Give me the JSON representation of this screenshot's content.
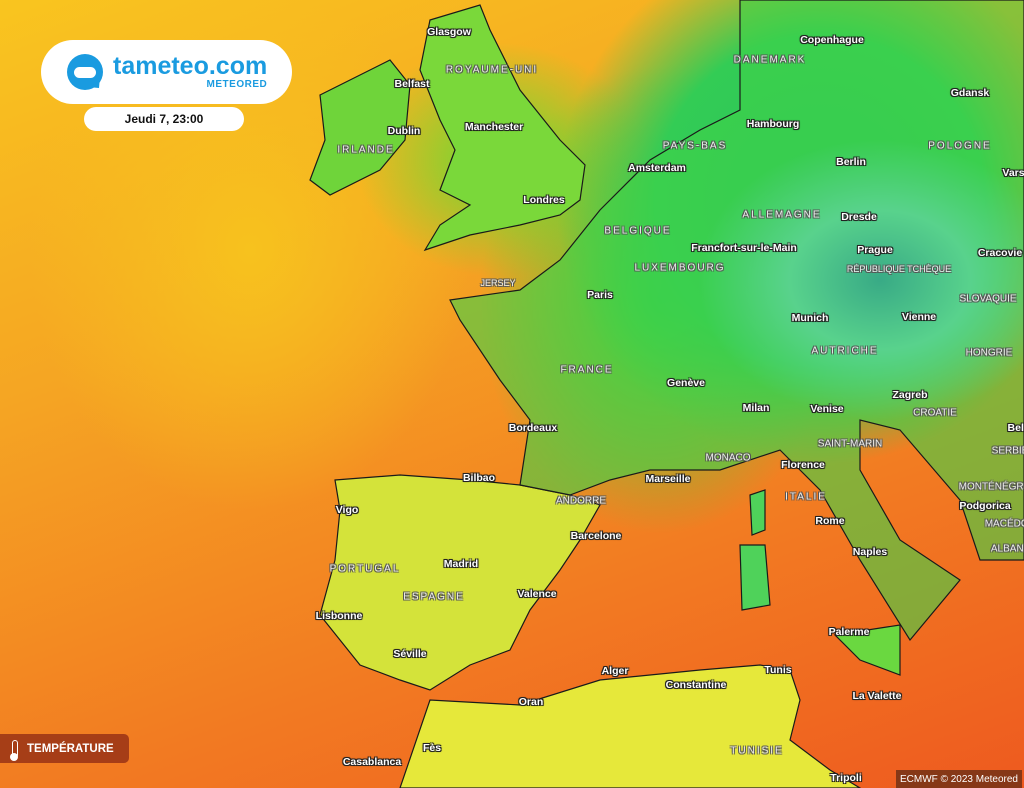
{
  "brand": {
    "name": "tameteo.com",
    "sub": "METEORED"
  },
  "date": "Jeudi 7, 23:00",
  "layer": {
    "label": "TEMPÉRATURE",
    "icon": "thermometer-icon"
  },
  "credit": "ECMWF © 2023 Meteored",
  "colors": {
    "brand": "#1a9be0",
    "warm": "#f27a22",
    "mild": "#f9c51f",
    "cool": "#33cc55",
    "cold": "#2f6fe0"
  },
  "cities": [
    "Glasgow",
    "Belfast",
    "Manchester",
    "Dublin",
    "Londres",
    "Amsterdam",
    "Hambourg",
    "Copenhague",
    "Gdansk",
    "Berlin",
    "Varsovie",
    "Dresde",
    "Prague",
    "Cracovie",
    "Francfort-sur-le-Main",
    "Paris",
    "Munich",
    "Vienne",
    "Genève",
    "Milan",
    "Venise",
    "Zagreb",
    "Belgrade",
    "Bordeaux",
    "Bilbao",
    "Marseille",
    "Florence",
    "Vigo",
    "Podgorica",
    "Barcelone",
    "Rome",
    "Madrid",
    "Naples",
    "Valence",
    "Lisbonne",
    "Palerme",
    "Séville",
    "Tunis",
    "Alger",
    "Constantine",
    "La Valette",
    "Oran",
    "Fès",
    "Casablanca",
    "Tripoli"
  ],
  "countries": [
    "DANEMARK",
    "ROYAUME-UNI",
    "IRLANDE",
    "PAYS-BAS",
    "BELGIQUE",
    "ALLEMAGNE",
    "POLOGNE",
    "LUXEMBOURG",
    "RÉPUBLIQUE TCHÈQUE",
    "JERSEY",
    "SLOVAQUIE",
    "FRANCE",
    "AUTRICHE",
    "HONGRIE",
    "CROATIE",
    "SERBIE",
    "MONACO",
    "SAINT-MARIN",
    "ANDORRE",
    "ITALIE",
    "MONTÉNÉGRO",
    "MACÉDOINE",
    "ALBANIE",
    "PORTUGAL",
    "ESPAGNE",
    "TUNISIE"
  ]
}
